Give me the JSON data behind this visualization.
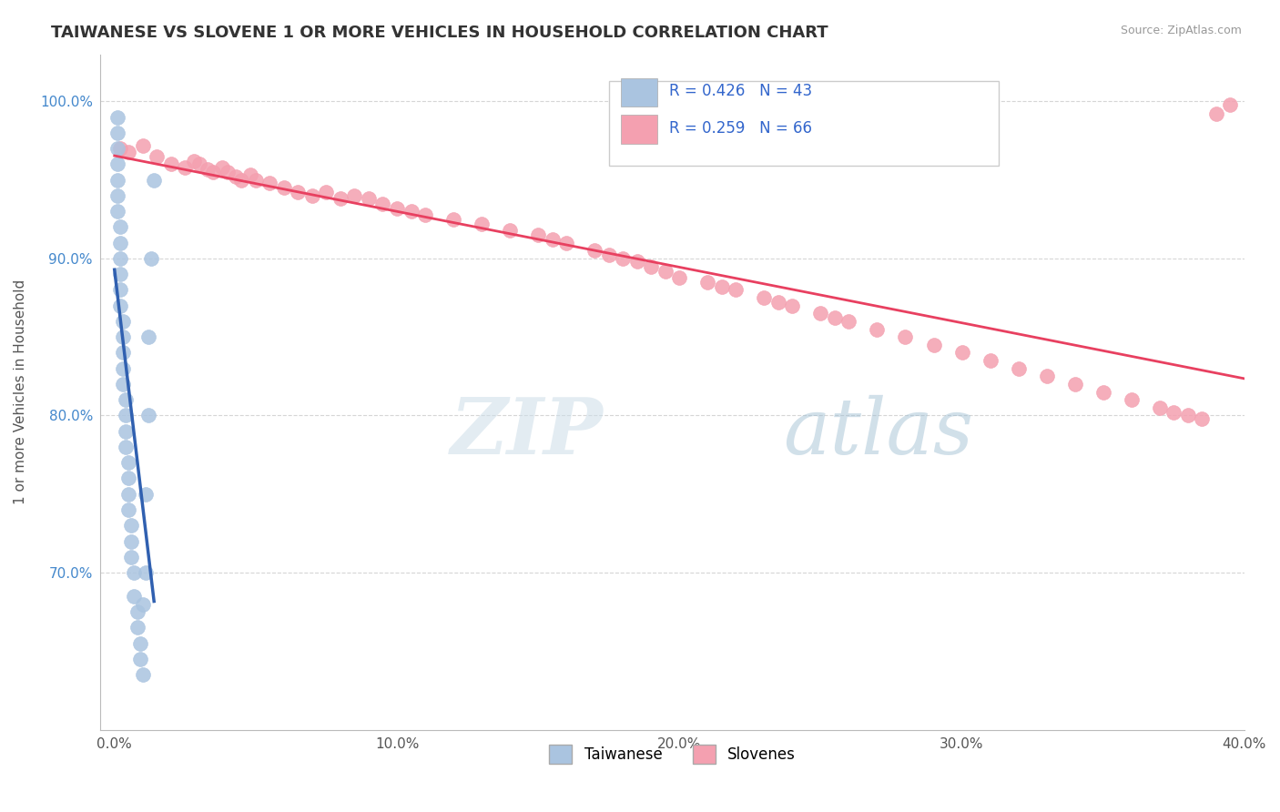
{
  "title": "TAIWANESE VS SLOVENE 1 OR MORE VEHICLES IN HOUSEHOLD CORRELATION CHART",
  "source": "Source: ZipAtlas.com",
  "ylabel": "1 or more Vehicles in Household",
  "xlim": [
    -0.005,
    0.4
  ],
  "ylim": [
    0.6,
    1.03
  ],
  "xticklabels": [
    "0.0%",
    "10.0%",
    "20.0%",
    "30.0%",
    "40.0%"
  ],
  "xtick_vals": [
    0.0,
    0.1,
    0.2,
    0.3,
    0.4
  ],
  "ytick_vals": [
    0.7,
    0.8,
    0.9,
    1.0
  ],
  "yticklabels": [
    "70.0%",
    "80.0%",
    "90.0%",
    "100.0%"
  ],
  "background_color": "#ffffff",
  "grid_color": "#cccccc",
  "taiwanese_color": "#aac4e0",
  "slovene_color": "#f4a0b0",
  "taiwanese_line_color": "#3060b0",
  "slovene_line_color": "#e84060",
  "R_taiwanese": 0.426,
  "N_taiwanese": 43,
  "R_slovene": 0.259,
  "N_slovene": 66,
  "legend_label_taiwanese": "Taiwanese",
  "legend_label_slovene": "Slovenes",
  "tw_x": [
    0.001,
    0.001,
    0.001,
    0.001,
    0.001,
    0.001,
    0.001,
    0.002,
    0.002,
    0.002,
    0.002,
    0.002,
    0.002,
    0.003,
    0.003,
    0.003,
    0.003,
    0.003,
    0.004,
    0.004,
    0.004,
    0.004,
    0.005,
    0.005,
    0.005,
    0.005,
    0.006,
    0.006,
    0.006,
    0.007,
    0.007,
    0.008,
    0.008,
    0.009,
    0.009,
    0.01,
    0.01,
    0.011,
    0.011,
    0.012,
    0.012,
    0.013,
    0.014
  ],
  "tw_y": [
    0.99,
    0.98,
    0.97,
    0.96,
    0.95,
    0.94,
    0.93,
    0.92,
    0.91,
    0.9,
    0.89,
    0.88,
    0.87,
    0.86,
    0.85,
    0.84,
    0.83,
    0.82,
    0.81,
    0.8,
    0.79,
    0.78,
    0.77,
    0.76,
    0.75,
    0.74,
    0.73,
    0.72,
    0.71,
    0.7,
    0.685,
    0.675,
    0.665,
    0.655,
    0.645,
    0.635,
    0.68,
    0.7,
    0.75,
    0.8,
    0.85,
    0.9,
    0.95
  ],
  "sl_x": [
    0.002,
    0.005,
    0.01,
    0.015,
    0.02,
    0.025,
    0.028,
    0.03,
    0.033,
    0.035,
    0.038,
    0.04,
    0.043,
    0.045,
    0.048,
    0.05,
    0.055,
    0.06,
    0.065,
    0.07,
    0.075,
    0.08,
    0.085,
    0.09,
    0.095,
    0.1,
    0.105,
    0.11,
    0.12,
    0.13,
    0.14,
    0.15,
    0.155,
    0.16,
    0.17,
    0.175,
    0.18,
    0.185,
    0.19,
    0.195,
    0.2,
    0.21,
    0.215,
    0.22,
    0.23,
    0.235,
    0.24,
    0.25,
    0.255,
    0.26,
    0.27,
    0.28,
    0.29,
    0.3,
    0.31,
    0.32,
    0.33,
    0.34,
    0.35,
    0.36,
    0.37,
    0.375,
    0.38,
    0.385,
    0.39,
    0.395
  ],
  "sl_y": [
    0.97,
    0.968,
    0.972,
    0.965,
    0.96,
    0.958,
    0.962,
    0.96,
    0.957,
    0.955,
    0.958,
    0.955,
    0.952,
    0.95,
    0.953,
    0.95,
    0.948,
    0.945,
    0.942,
    0.94,
    0.942,
    0.938,
    0.94,
    0.938,
    0.935,
    0.932,
    0.93,
    0.928,
    0.925,
    0.922,
    0.918,
    0.915,
    0.912,
    0.91,
    0.905,
    0.902,
    0.9,
    0.898,
    0.895,
    0.892,
    0.888,
    0.885,
    0.882,
    0.88,
    0.875,
    0.872,
    0.87,
    0.865,
    0.862,
    0.86,
    0.855,
    0.85,
    0.845,
    0.84,
    0.835,
    0.83,
    0.825,
    0.82,
    0.815,
    0.81,
    0.805,
    0.802,
    0.8,
    0.798,
    0.992,
    0.998
  ]
}
